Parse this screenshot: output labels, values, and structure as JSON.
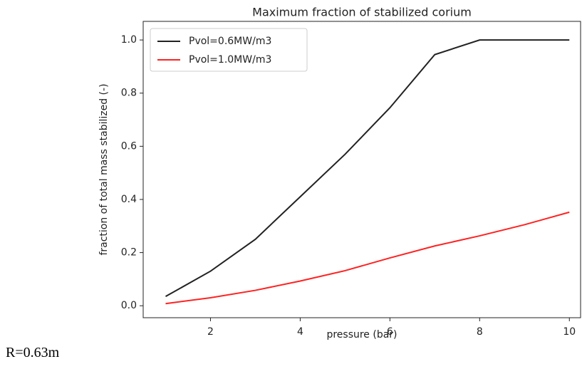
{
  "chart_data": {
    "type": "line",
    "title": "Maximum fraction of stabilized corium",
    "xlabel": "pressure (bar)",
    "ylabel": "fraction of total mass stabilized (-)",
    "x": [
      1,
      2,
      3,
      4,
      5,
      6,
      7,
      8,
      9,
      10
    ],
    "series": [
      {
        "name": "Pvol=0.6MW/m3",
        "color": "#222222",
        "values": [
          0.035,
          0.13,
          0.25,
          0.41,
          0.57,
          0.745,
          0.945,
          1.0,
          1.0,
          1.0
        ]
      },
      {
        "name": "Pvol=1.0MW/m3",
        "color": "#ff2222",
        "values": [
          0.008,
          0.03,
          0.058,
          0.093,
          0.132,
          0.18,
          0.225,
          0.263,
          0.305,
          0.352
        ]
      }
    ],
    "xlim": [
      0.5,
      10.25
    ],
    "ylim": [
      -0.045,
      1.07
    ],
    "xticks": [
      2,
      4,
      6,
      8,
      10
    ],
    "yticks": [
      {
        "value": 0,
        "label": "0.0"
      },
      0.2,
      0.4,
      0.6,
      0.8,
      {
        "value": 1,
        "label": "1.0"
      }
    ],
    "legend": "upper left",
    "grid": false
  },
  "caption": "R=0.63m"
}
